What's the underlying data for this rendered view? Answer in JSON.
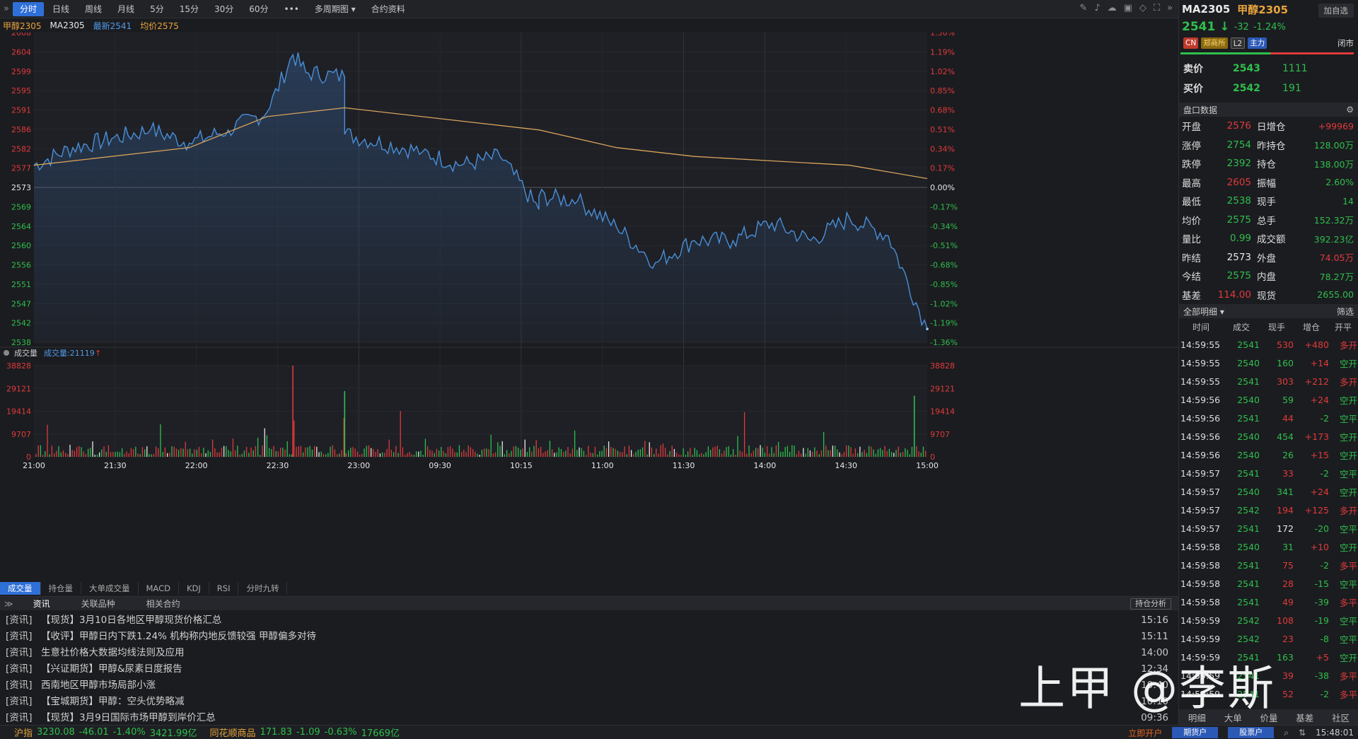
{
  "toolbar": {
    "periods": [
      "分时",
      "日线",
      "周线",
      "月线",
      "5分",
      "15分",
      "30分",
      "60分",
      "•••",
      "多周期图 ▾",
      "合约资料"
    ],
    "active": "分时"
  },
  "infoline": {
    "name": "甲醇2305",
    "code": "MA2305",
    "latest": "最新2541",
    "avg": "均价2575"
  },
  "price_axis": {
    "left": [
      "2608",
      "2604",
      "2599",
      "2595",
      "2591",
      "2586",
      "2582",
      "2577",
      "2573",
      "2569",
      "2564",
      "2560",
      "2556",
      "2551",
      "2547",
      "2542",
      "2538"
    ],
    "right": [
      "1.36%",
      "1.19%",
      "1.02%",
      "0.85%",
      "0.68%",
      "0.51%",
      "0.34%",
      "0.17%",
      "0.00%",
      "-0.17%",
      "-0.34%",
      "-0.51%",
      "-0.68%",
      "-0.85%",
      "-1.02%",
      "-1.19%",
      "-1.36%"
    ]
  },
  "volume_header": {
    "label": "成交量",
    "value_label": "成交量:",
    "value": "21119",
    "axis": [
      "38828",
      "29121",
      "19414",
      "9707",
      "0"
    ]
  },
  "time_axis": [
    "21:00",
    "21:30",
    "22:00",
    "22:30",
    "23:00",
    "09:30",
    "10:15",
    "11:00",
    "11:30",
    "14:00",
    "14:30",
    "15:00"
  ],
  "indicator_tabs": [
    "成交量",
    "持仓量",
    "大单成交量",
    "MACD",
    "KDJ",
    "RSI",
    "分时九转"
  ],
  "news_tabs": [
    "资讯",
    "关联品种",
    "相关合约"
  ],
  "hold_analysis": "持仓分析",
  "news": [
    {
      "tag": "[资讯]",
      "title": "【现货】3月10日各地区甲醇现货价格汇总",
      "time": "15:16"
    },
    {
      "tag": "[资讯]",
      "title": "【收评】甲醇日内下跌1.24% 机构称内地反馈较强 甲醇偏多对待",
      "time": "15:11"
    },
    {
      "tag": "[资讯]",
      "title": "生意社价格大数据均线法则及应用",
      "time": "14:00"
    },
    {
      "tag": "[资讯]",
      "title": "【兴证期货】甲醇&尿素日度报告",
      "time": "12:34"
    },
    {
      "tag": "[资讯]",
      "title": "西南地区甲醇市场局部小涨",
      "time": "10:40"
    },
    {
      "tag": "[资讯]",
      "title": "【宝城期货】甲醇：空头优势略减",
      "time": "10:10"
    },
    {
      "tag": "[资讯]",
      "title": "【现货】3月9日国际市场甲醇到岸价汇总",
      "time": "09:36"
    }
  ],
  "statusbar": {
    "idx1_name": "沪指",
    "idx1_val": "3230.08",
    "idx1_chg": "-46.01",
    "idx1_pct": "-1.40%",
    "idx1_amt": "3421.99亿",
    "idx2_name": "同花顺商品",
    "idx2_val": "171.83",
    "idx2_chg": "-1.09",
    "idx2_pct": "-0.63%",
    "idx2_amt": "17669亿",
    "open_account": "立即开户",
    "futures_btn": "期货户",
    "stock_btn": "股票户",
    "clock": "15:48:01"
  },
  "quote": {
    "code": "MA2305",
    "name": "甲醇2305",
    "add": "加自选",
    "price": "2541",
    "arrow": "↓",
    "change": "-32",
    "pct": "-1.24%",
    "tags": [
      "CN",
      "郑商所",
      "L2",
      "主力"
    ],
    "status": "闭市",
    "ask_label": "卖价",
    "ask_price": "2543",
    "ask_vol": "1111",
    "bid_label": "买价",
    "bid_price": "2542",
    "bid_vol": "191",
    "panel_title": "盘口数据",
    "rows": [
      {
        "k1": "开盘",
        "v1": "2576",
        "c1": "red",
        "k2": "日增仓",
        "v2": "+99969",
        "c2": "red"
      },
      {
        "k1": "涨停",
        "v1": "2754",
        "c1": "grn",
        "k2": "昨持仓",
        "v2": "128.00万",
        "c2": "grn"
      },
      {
        "k1": "跌停",
        "v1": "2392",
        "c1": "grn",
        "k2": "持仓",
        "v2": "138.00万",
        "c2": "grn"
      },
      {
        "k1": "最高",
        "v1": "2605",
        "c1": "red",
        "k2": "振幅",
        "v2": "2.60%",
        "c2": "grn"
      },
      {
        "k1": "最低",
        "v1": "2538",
        "c1": "grn",
        "k2": "现手",
        "v2": "14",
        "c2": "grn"
      },
      {
        "k1": "均价",
        "v1": "2575",
        "c1": "grn",
        "k2": "总手",
        "v2": "152.32万",
        "c2": "grn"
      },
      {
        "k1": "量比",
        "v1": "0.99",
        "c1": "grn",
        "k2": "成交额",
        "v2": "392.23亿",
        "c2": "grn"
      },
      {
        "k1": "昨结",
        "v1": "2573",
        "c1": "wht",
        "k2": "外盘",
        "v2": "74.05万",
        "c2": "red"
      },
      {
        "k1": "今结",
        "v1": "2575",
        "c1": "grn",
        "k2": "内盘",
        "v2": "78.27万",
        "c2": "grn"
      },
      {
        "k1": "基差",
        "v1": "114.00",
        "c1": "red",
        "k2": "现货",
        "v2": "2655.00",
        "c2": "grn"
      }
    ]
  },
  "trades": {
    "filter_label": "全部明细 ▾",
    "filter_btn": "筛选",
    "columns": [
      "时间",
      "成交",
      "现手",
      "增仓",
      "开平"
    ],
    "rows": [
      {
        "t": "14:59:55",
        "p": "2541",
        "v": "530",
        "oi": "+480",
        "d": "多开",
        "pc": "grn",
        "vc": "red",
        "oc": "red",
        "dc": "red"
      },
      {
        "t": "14:59:55",
        "p": "2540",
        "v": "160",
        "oi": "+14",
        "d": "空开",
        "pc": "grn",
        "vc": "grn",
        "oc": "red",
        "dc": "grn"
      },
      {
        "t": "14:59:55",
        "p": "2541",
        "v": "303",
        "oi": "+212",
        "d": "多开",
        "pc": "grn",
        "vc": "red",
        "oc": "red",
        "dc": "red"
      },
      {
        "t": "14:59:56",
        "p": "2540",
        "v": "59",
        "oi": "+24",
        "d": "空开",
        "pc": "grn",
        "vc": "grn",
        "oc": "red",
        "dc": "grn"
      },
      {
        "t": "14:59:56",
        "p": "2541",
        "v": "44",
        "oi": "-2",
        "d": "空平",
        "pc": "grn",
        "vc": "red",
        "oc": "grn",
        "dc": "grn"
      },
      {
        "t": "14:59:56",
        "p": "2540",
        "v": "454",
        "oi": "+173",
        "d": "空开",
        "pc": "grn",
        "vc": "grn",
        "oc": "red",
        "dc": "grn"
      },
      {
        "t": "14:59:56",
        "p": "2540",
        "v": "26",
        "oi": "+15",
        "d": "空开",
        "pc": "grn",
        "vc": "grn",
        "oc": "red",
        "dc": "grn"
      },
      {
        "t": "14:59:57",
        "p": "2541",
        "v": "33",
        "oi": "-2",
        "d": "空平",
        "pc": "grn",
        "vc": "red",
        "oc": "grn",
        "dc": "grn"
      },
      {
        "t": "14:59:57",
        "p": "2540",
        "v": "341",
        "oi": "+24",
        "d": "空开",
        "pc": "grn",
        "vc": "grn",
        "oc": "red",
        "dc": "grn"
      },
      {
        "t": "14:59:57",
        "p": "2542",
        "v": "194",
        "oi": "+125",
        "d": "多开",
        "pc": "grn",
        "vc": "red",
        "oc": "red",
        "dc": "red"
      },
      {
        "t": "14:59:57",
        "p": "2541",
        "v": "172",
        "oi": "-20",
        "d": "空平",
        "pc": "grn",
        "vc": "wht",
        "oc": "grn",
        "dc": "grn"
      },
      {
        "t": "14:59:58",
        "p": "2540",
        "v": "31",
        "oi": "+10",
        "d": "空开",
        "pc": "grn",
        "vc": "grn",
        "oc": "red",
        "dc": "grn"
      },
      {
        "t": "14:59:58",
        "p": "2541",
        "v": "75",
        "oi": "-2",
        "d": "多平",
        "pc": "grn",
        "vc": "red",
        "oc": "grn",
        "dc": "red"
      },
      {
        "t": "14:59:58",
        "p": "2541",
        "v": "28",
        "oi": "-15",
        "d": "空平",
        "pc": "grn",
        "vc": "red",
        "oc": "grn",
        "dc": "grn"
      },
      {
        "t": "14:59:58",
        "p": "2541",
        "v": "49",
        "oi": "-39",
        "d": "多平",
        "pc": "grn",
        "vc": "red",
        "oc": "grn",
        "dc": "red"
      },
      {
        "t": "14:59:59",
        "p": "2542",
        "v": "108",
        "oi": "-19",
        "d": "空平",
        "pc": "grn",
        "vc": "red",
        "oc": "grn",
        "dc": "grn"
      },
      {
        "t": "14:59:59",
        "p": "2542",
        "v": "23",
        "oi": "-8",
        "d": "空平",
        "pc": "grn",
        "vc": "red",
        "oc": "grn",
        "dc": "grn"
      },
      {
        "t": "14:59:59",
        "p": "2541",
        "v": "163",
        "oi": "+5",
        "d": "空开",
        "pc": "grn",
        "vc": "grn",
        "oc": "red",
        "dc": "grn"
      },
      {
        "t": "14:59:59",
        "p": "2541",
        "v": "39",
        "oi": "-38",
        "d": "多平",
        "pc": "grn",
        "vc": "red",
        "oc": "grn",
        "dc": "red"
      },
      {
        "t": "14:59:59",
        "p": "2541",
        "v": "52",
        "oi": "-2",
        "d": "多平",
        "pc": "grn",
        "vc": "red",
        "oc": "grn",
        "dc": "red"
      }
    ],
    "footer": [
      "明细",
      "大单",
      "价量",
      "基差",
      "社区"
    ]
  },
  "watermark": "上甲 @李斯",
  "chart_data": {
    "type": "line",
    "title": "甲醇2305",
    "ylim": [
      2538,
      2608
    ],
    "prev_settle": 2573,
    "series": [
      {
        "name": "最新",
        "color": "#4a8fd8",
        "x": [
          "21:00",
          "21:15",
          "21:30",
          "21:45",
          "22:00",
          "22:15",
          "22:30",
          "22:40",
          "22:45",
          "23:00",
          "09:00",
          "09:30",
          "09:45",
          "10:00",
          "10:15",
          "10:30",
          "10:45",
          "11:00",
          "11:15",
          "11:30",
          "13:45",
          "14:00",
          "14:15",
          "14:30",
          "14:45",
          "15:00"
        ],
        "values": [
          2578,
          2582,
          2584,
          2586,
          2583,
          2586,
          2590,
          2603,
          2599,
          2598,
          2585,
          2581,
          2578,
          2580,
          2568,
          2571,
          2570,
          2564,
          2556,
          2561,
          2561,
          2565,
          2561,
          2566,
          2562,
          2541
        ]
      },
      {
        "name": "均价",
        "color": "#d9a35a",
        "x": [
          "21:00",
          "22:00",
          "22:30",
          "23:00",
          "10:15",
          "11:00",
          "11:30",
          "14:00",
          "14:30",
          "15:00"
        ],
        "values": [
          2578,
          2582,
          2589,
          2591,
          2586,
          2582,
          2580,
          2579,
          2578,
          2575
        ]
      }
    ],
    "volume_ylim": [
      0,
      38828
    ],
    "volume_highlights": [
      {
        "x": "22:40",
        "value": 38828,
        "color": "red"
      },
      {
        "x": "23:00",
        "value": 28000,
        "color": "green"
      },
      {
        "x": "14:55",
        "value": 26000,
        "color": "green"
      }
    ]
  }
}
